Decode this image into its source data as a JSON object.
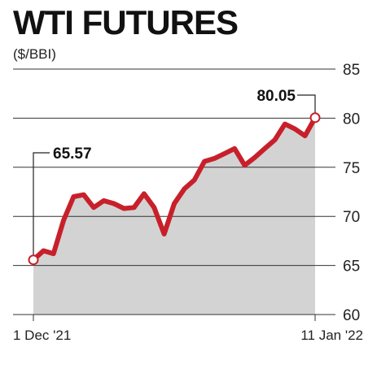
{
  "header": {
    "title": "WTI FUTURES",
    "unit": "($/BBI)"
  },
  "colors": {
    "line": "#c8202a",
    "area": "#d3d3d3",
    "grid": "#333333",
    "marker_fill": "#ffffff"
  },
  "chart_data": {
    "type": "area",
    "title": "WTI FUTURES",
    "ylabel": "($/BBI)",
    "xlabel": "",
    "ylim": [
      60,
      85
    ],
    "yticks": [
      85,
      80,
      75,
      70,
      65,
      60
    ],
    "x_tick_labels": [
      "1 Dec '21",
      "11 Jan '22"
    ],
    "grid": true,
    "series": [
      {
        "values": [
          65.57,
          66.5,
          66.2,
          69.6,
          72.0,
          72.2,
          70.9,
          71.6,
          71.3,
          70.8,
          70.9,
          72.3,
          70.9,
          68.2,
          71.3,
          72.8,
          73.7,
          75.6,
          75.9,
          76.4,
          76.9,
          75.2,
          76.0,
          76.9,
          77.8,
          79.4,
          78.9,
          78.2,
          80.05
        ]
      }
    ],
    "annotations": [
      {
        "point_index": 0,
        "label": "65.57"
      },
      {
        "point_index": 28,
        "label": "80.05"
      }
    ]
  }
}
